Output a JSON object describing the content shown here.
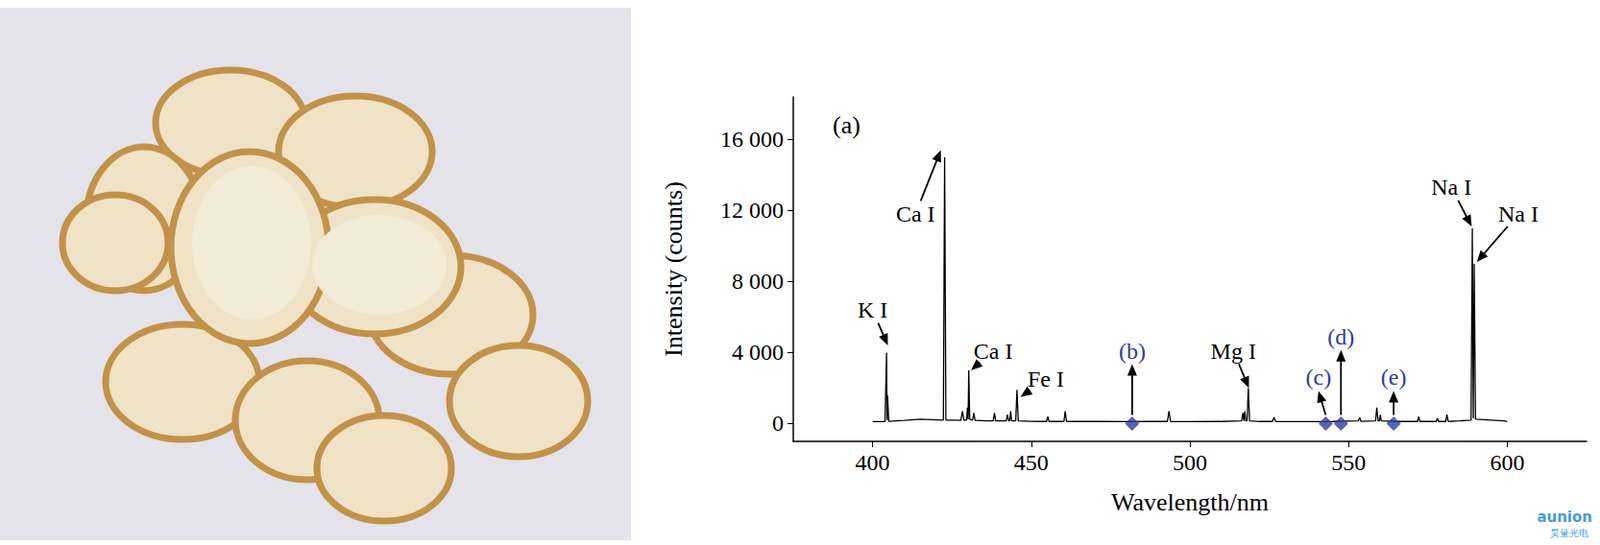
{
  "chart_data": {
    "type": "line",
    "title": "(a)",
    "x_label": "Wavelength/nm",
    "y_label": "Intensity (counts)",
    "color": "#000000",
    "x": [
      400.0,
      403.9,
      404.4,
      404.55,
      404.7,
      405.1,
      410.0,
      415.0,
      422.3,
      422.7,
      423.1,
      426.0,
      427.8,
      428.3,
      428.8,
      429.6,
      429.9,
      430.1,
      430.3,
      430.6,
      431.5,
      431.9,
      432.3,
      436.0,
      438.0,
      438.4,
      438.8,
      442.1,
      442.5,
      442.9,
      443.2,
      443.5,
      443.8,
      445.1,
      445.5,
      445.9,
      450.0,
      454.8,
      455.2,
      455.6,
      460.3,
      460.7,
      461.1,
      470.0,
      480.0,
      487.5,
      492.9,
      493.4,
      493.9,
      500.0,
      510.0,
      516.3,
      516.7,
      517.0,
      517.3,
      517.6,
      518.0,
      518.4,
      518.8,
      522.0,
      526.0,
      526.5,
      527.0,
      535.0,
      545.0,
      553.1,
      553.5,
      553.9,
      558.5,
      558.9,
      559.3,
      559.7,
      560.0,
      560.3,
      565.0,
      571.7,
      572.1,
      572.5,
      577.6,
      578.0,
      578.4,
      580.6,
      581.0,
      581.4,
      585.0,
      588.6,
      589.0,
      589.3,
      589.6,
      590.0,
      595.0,
      599.0,
      600.0
    ],
    "values": [
      110,
      120,
      4000,
      200,
      1600,
      130,
      180,
      250,
      200,
      15000,
      200,
      200,
      180,
      700,
      200,
      200,
      900,
      250,
      3000,
      250,
      200,
      600,
      180,
      150,
      150,
      600,
      150,
      150,
      500,
      150,
      150,
      700,
      150,
      150,
      1900,
      150,
      130,
      120,
      400,
      120,
      120,
      700,
      120,
      120,
      110,
      130,
      120,
      700,
      120,
      110,
      120,
      150,
      600,
      150,
      700,
      150,
      150,
      2000,
      150,
      120,
      120,
      350,
      120,
      110,
      120,
      150,
      350,
      130,
      150,
      900,
      150,
      150,
      500,
      150,
      120,
      120,
      400,
      120,
      120,
      300,
      120,
      120,
      500,
      120,
      150,
      200,
      11000,
      300,
      9000,
      250,
      200,
      150,
      120
    ],
    "xlim": [
      375,
      625
    ],
    "xticks": [
      400,
      450,
      500,
      550,
      600
    ],
    "ylim": [
      -1000,
      18400
    ],
    "yticks": [
      0,
      {
        "value": 4000,
        "label": "4 000"
      },
      {
        "value": 8000,
        "label": "8 000"
      },
      {
        "value": 12000,
        "label": "12 000"
      },
      {
        "value": 16000,
        "label": "16 000"
      }
    ],
    "grid": false,
    "annotations": [
      {
        "text": "K I",
        "x": 404.8,
        "y": 4400,
        "text_x": 400,
        "text_y": 6400
      },
      {
        "text": "Ca I",
        "x": 421.5,
        "y": 15400,
        "text_x": 413.5,
        "text_y": 11800
      },
      {
        "text": "Ca I",
        "x": 431,
        "y": 3000,
        "text_x": 438,
        "text_y": 4100
      },
      {
        "text": "Fe I",
        "x": 446.6,
        "y": 1500,
        "text_x": 454.6,
        "text_y": 2500
      },
      {
        "text": "Mg I",
        "x": 518.6,
        "y": 2000,
        "text_x": 513.7,
        "text_y": 4100
      },
      {
        "text": "Na I",
        "x": 588.8,
        "y": 11100,
        "text_x": 582.4,
        "text_y": 13300
      },
      {
        "text": "Na I",
        "x": 590.4,
        "y": 9100,
        "text_x": 603.5,
        "text_y": 11800
      }
    ],
    "markers": {
      "type": "scatter",
      "marker": "diamond",
      "color": "#2e3d9c",
      "points": [
        {
          "label": "(b)",
          "x": 481.8,
          "y": 0,
          "text_x": 481.8,
          "text_y": 4100
        },
        {
          "label": "(c)",
          "x": 542.8,
          "y": 0,
          "text_x": 540.5,
          "text_y": 2600
        },
        {
          "label": "(d)",
          "x": 547.6,
          "y": 0,
          "text_x": 547.6,
          "text_y": 4900
        },
        {
          "label": "(e)",
          "x": 564.2,
          "y": 0,
          "text_x": 564.2,
          "text_y": 2600
        }
      ]
    },
    "watermark": {
      "text": "aunion",
      "subtext": "昊量光电"
    }
  }
}
